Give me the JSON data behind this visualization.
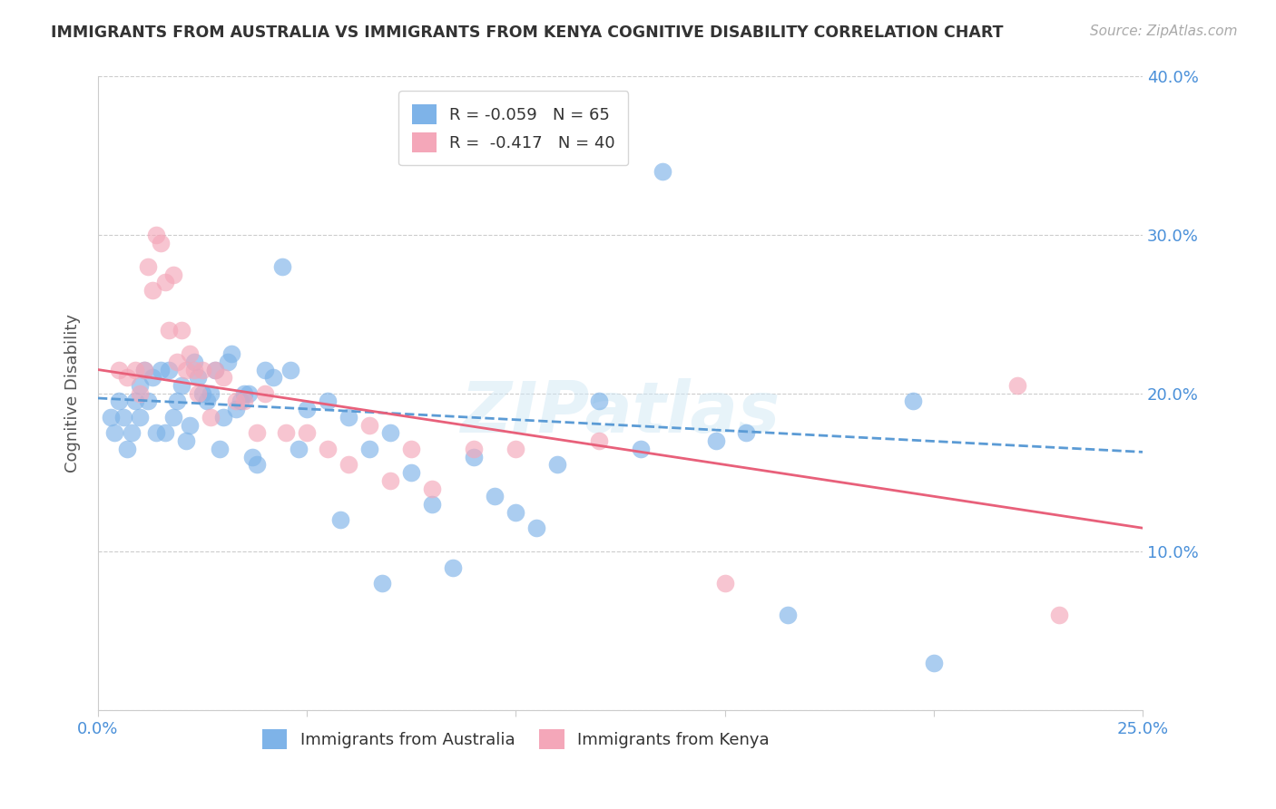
{
  "title": "IMMIGRANTS FROM AUSTRALIA VS IMMIGRANTS FROM KENYA COGNITIVE DISABILITY CORRELATION CHART",
  "source": "Source: ZipAtlas.com",
  "ylabel": "Cognitive Disability",
  "x_min": 0.0,
  "x_max": 0.25,
  "y_min": 0.0,
  "y_max": 0.4,
  "x_ticks": [
    0.0,
    0.05,
    0.1,
    0.15,
    0.2,
    0.25
  ],
  "x_tick_labels": [
    "0.0%",
    "",
    "",
    "",
    "",
    "25.0%"
  ],
  "y_ticks": [
    0.0,
    0.1,
    0.2,
    0.3,
    0.4
  ],
  "y_tick_labels": [
    "",
    "10.0%",
    "20.0%",
    "30.0%",
    "40.0%"
  ],
  "legend_r1": "R = -0.059",
  "legend_n1": "N = 65",
  "legend_r2": "R =  -0.417",
  "legend_n2": "N = 40",
  "color_australia": "#7EB3E8",
  "color_kenya": "#F4A7B9",
  "color_trendline_australia": "#5B9BD5",
  "color_trendline_kenya": "#E8607A",
  "watermark": "ZIPatlas",
  "australia_x": [
    0.003,
    0.004,
    0.005,
    0.006,
    0.007,
    0.008,
    0.009,
    0.01,
    0.01,
    0.011,
    0.012,
    0.013,
    0.014,
    0.015,
    0.016,
    0.017,
    0.018,
    0.019,
    0.02,
    0.021,
    0.022,
    0.023,
    0.024,
    0.025,
    0.026,
    0.027,
    0.028,
    0.029,
    0.03,
    0.031,
    0.032,
    0.033,
    0.034,
    0.035,
    0.036,
    0.037,
    0.038,
    0.04,
    0.042,
    0.044,
    0.046,
    0.048,
    0.05,
    0.055,
    0.058,
    0.06,
    0.065,
    0.068,
    0.07,
    0.075,
    0.08,
    0.085,
    0.09,
    0.095,
    0.1,
    0.105,
    0.11,
    0.12,
    0.13,
    0.135,
    0.148,
    0.155,
    0.165,
    0.195,
    0.2
  ],
  "australia_y": [
    0.185,
    0.175,
    0.195,
    0.185,
    0.165,
    0.175,
    0.195,
    0.205,
    0.185,
    0.215,
    0.195,
    0.21,
    0.175,
    0.215,
    0.175,
    0.215,
    0.185,
    0.195,
    0.205,
    0.17,
    0.18,
    0.22,
    0.21,
    0.2,
    0.195,
    0.2,
    0.215,
    0.165,
    0.185,
    0.22,
    0.225,
    0.19,
    0.195,
    0.2,
    0.2,
    0.16,
    0.155,
    0.215,
    0.21,
    0.28,
    0.215,
    0.165,
    0.19,
    0.195,
    0.12,
    0.185,
    0.165,
    0.08,
    0.175,
    0.15,
    0.13,
    0.09,
    0.16,
    0.135,
    0.125,
    0.115,
    0.155,
    0.195,
    0.165,
    0.34,
    0.17,
    0.175,
    0.06,
    0.195,
    0.03
  ],
  "kenya_x": [
    0.005,
    0.007,
    0.009,
    0.01,
    0.011,
    0.012,
    0.013,
    0.014,
    0.015,
    0.016,
    0.017,
    0.018,
    0.019,
    0.02,
    0.021,
    0.022,
    0.023,
    0.024,
    0.025,
    0.027,
    0.028,
    0.03,
    0.033,
    0.035,
    0.038,
    0.04,
    0.045,
    0.05,
    0.055,
    0.06,
    0.065,
    0.07,
    0.075,
    0.08,
    0.09,
    0.1,
    0.12,
    0.15,
    0.22,
    0.23
  ],
  "kenya_y": [
    0.215,
    0.21,
    0.215,
    0.2,
    0.215,
    0.28,
    0.265,
    0.3,
    0.295,
    0.27,
    0.24,
    0.275,
    0.22,
    0.24,
    0.215,
    0.225,
    0.215,
    0.2,
    0.215,
    0.185,
    0.215,
    0.21,
    0.195,
    0.195,
    0.175,
    0.2,
    0.175,
    0.175,
    0.165,
    0.155,
    0.18,
    0.145,
    0.165,
    0.14,
    0.165,
    0.165,
    0.17,
    0.08,
    0.205,
    0.06
  ],
  "trendline_aus_x0": 0.0,
  "trendline_aus_y0": 0.197,
  "trendline_aus_x1": 0.25,
  "trendline_aus_y1": 0.163,
  "trendline_ken_x0": 0.0,
  "trendline_ken_y0": 0.215,
  "trendline_ken_x1": 0.25,
  "trendline_ken_y1": 0.115
}
